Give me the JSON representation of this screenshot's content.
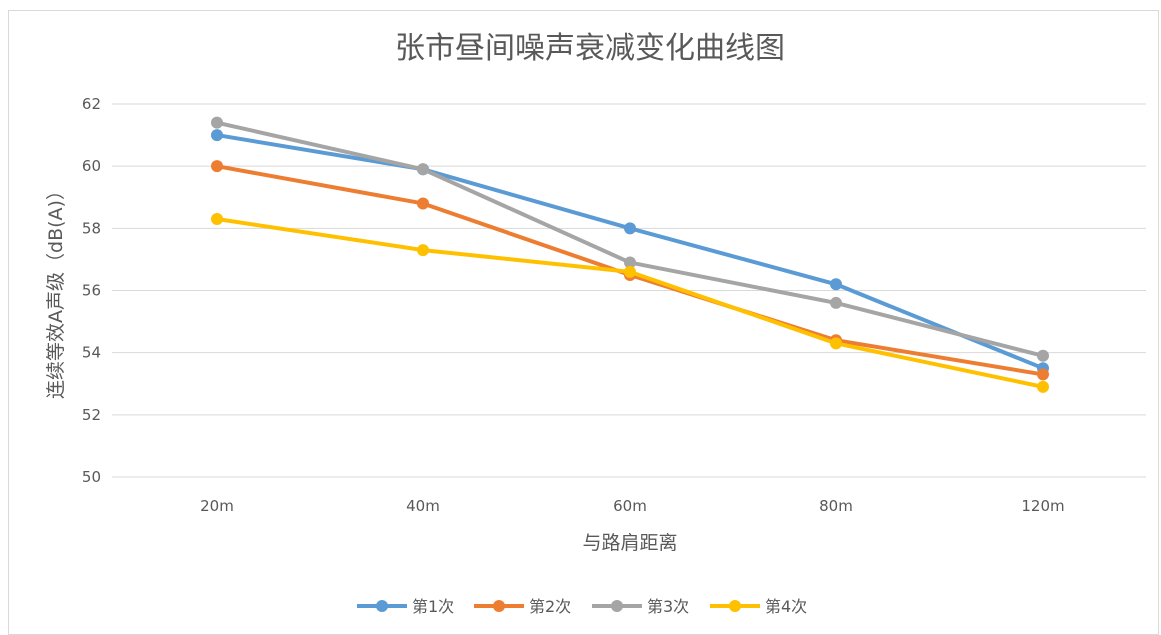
{
  "chart_data": {
    "type": "line",
    "title": "张市昼间噪声衰减变化曲线图",
    "xlabel": "与路肩距离",
    "ylabel": "连续等效A声级（dB(A)）",
    "categories": [
      "20m",
      "40m",
      "60m",
      "80m",
      "120m"
    ],
    "ylim": [
      50,
      62
    ],
    "yticks": [
      50,
      52,
      54,
      56,
      58,
      60,
      62
    ],
    "grid": true,
    "legend_position": "bottom",
    "series": [
      {
        "name": "第1次",
        "color": "#5B9BD5",
        "values": [
          61.0,
          59.9,
          58.0,
          56.2,
          53.5
        ]
      },
      {
        "name": "第2次",
        "color": "#ED7D31",
        "values": [
          60.0,
          58.8,
          56.5,
          54.4,
          53.3
        ]
      },
      {
        "name": "第3次",
        "color": "#A5A5A5",
        "values": [
          61.4,
          59.9,
          56.9,
          55.6,
          53.9
        ]
      },
      {
        "name": "第4次",
        "color": "#FFC000",
        "values": [
          58.3,
          57.3,
          56.6,
          54.3,
          52.9
        ]
      }
    ]
  }
}
